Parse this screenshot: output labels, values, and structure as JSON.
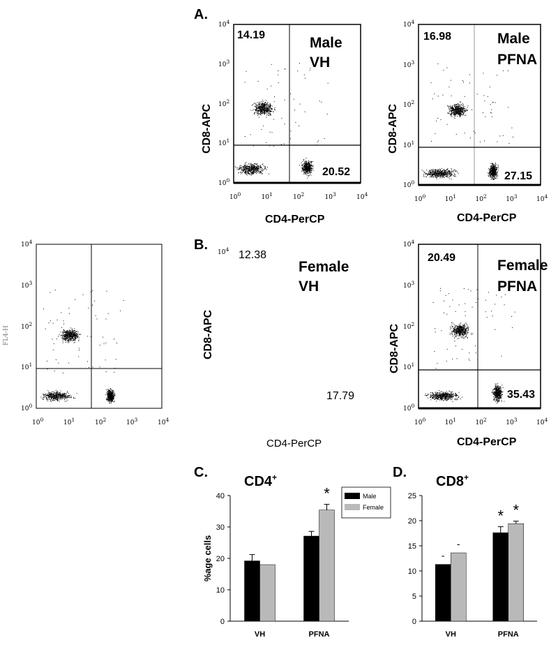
{
  "panel_labels": {
    "a": "A.",
    "b": "B.",
    "c": "C.",
    "d": "D."
  },
  "flow_plots": [
    {
      "id": "male-vh",
      "xlabel": "CD4-PerCP",
      "ylabel": "CD8-APC",
      "top_left": "14.19",
      "bottom_right": "20.52",
      "group_line1": "Male",
      "group_line2": "VH"
    },
    {
      "id": "male-pfna",
      "xlabel": "CD4-PerCP",
      "ylabel": "CD8-APC",
      "top_left": "16.98",
      "bottom_right": "27.15",
      "group_line1": "Male",
      "group_line2": "PFNA"
    },
    {
      "id": "female-vh",
      "xlabel": "CD4-PerCP",
      "ylabel": "CD8-APC",
      "top_left": "12.38",
      "bottom_right": "17.79",
      "group_line1": "Female",
      "group_line2": "VH"
    },
    {
      "id": "female-pfna",
      "xlabel": "CD4-PerCP",
      "ylabel": "CD8-APC",
      "top_left": "20.49",
      "bottom_right": "35.43",
      "group_line1": "Female",
      "group_line2": "PFNA"
    }
  ],
  "side_plot": {
    "ylabel": "FL4-H"
  },
  "log_ticks": {
    "base": "10",
    "exponents": [
      "0",
      "1",
      "2",
      "3",
      "4"
    ]
  },
  "chart_data": [
    {
      "type": "bar",
      "title": "CD4+",
      "ylabel": "%age cells",
      "categories": [
        "VH",
        "PFNA"
      ],
      "ylim": [
        0,
        40
      ],
      "yticks": [
        "0",
        "10",
        "20",
        "30",
        "40"
      ],
      "legend_position": "top-right",
      "series": [
        {
          "name": "Male",
          "values": [
            19.2,
            27.1
          ],
          "errors": [
            2.0,
            1.5
          ],
          "color": "#000000"
        },
        {
          "name": "Female",
          "values": [
            18.0,
            35.4
          ],
          "errors": [
            0,
            1.8
          ],
          "color": "#b9b9b9"
        }
      ],
      "significance": [
        "",
        "*"
      ]
    },
    {
      "type": "bar",
      "title": "CD8+",
      "ylabel": "",
      "categories": [
        "VH",
        "PFNA"
      ],
      "ylim": [
        0,
        25
      ],
      "yticks": [
        "0",
        "5",
        "10",
        "15",
        "20",
        "25"
      ],
      "series": [
        {
          "name": "Male",
          "values": [
            11.3,
            17.6
          ],
          "errors": [
            0,
            1.2
          ],
          "color": "#000000"
        },
        {
          "name": "Female",
          "values": [
            13.6,
            19.4
          ],
          "errors": [
            0,
            0.5
          ],
          "color": "#b9b9b9"
        }
      ],
      "significance_male": [
        "-",
        "*"
      ],
      "significance_female": [
        "-",
        "*"
      ]
    }
  ]
}
